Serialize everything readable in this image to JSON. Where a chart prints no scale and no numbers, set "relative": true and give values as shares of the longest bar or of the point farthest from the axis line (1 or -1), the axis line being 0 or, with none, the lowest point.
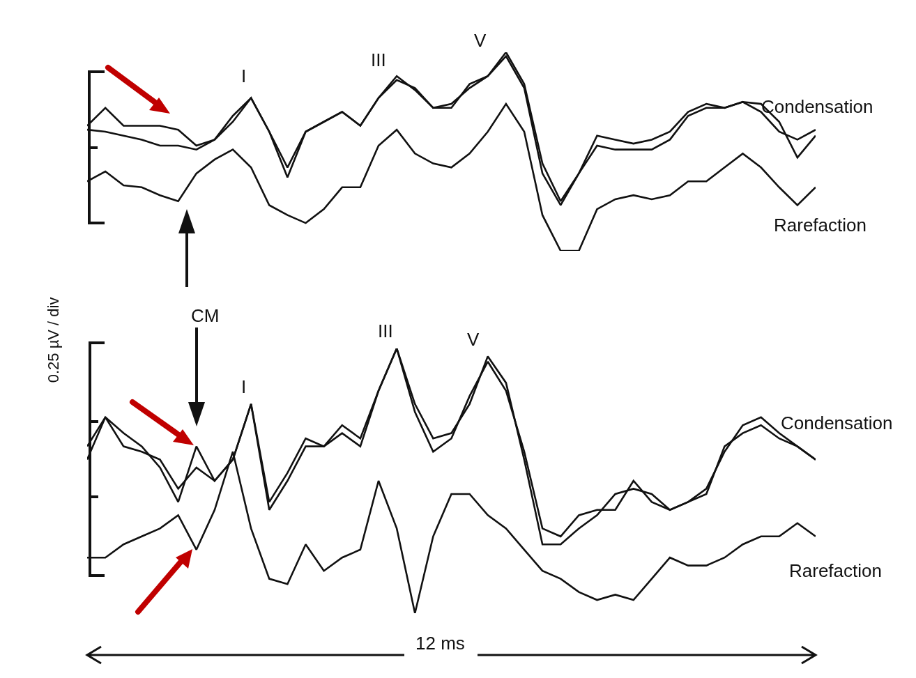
{
  "chart_data": [
    {
      "type": "line",
      "relative": true,
      "categories": [
        null,
        null,
        null,
        null,
        null,
        null,
        null,
        null,
        null,
        null,
        null,
        null,
        null,
        null,
        null,
        null,
        null,
        null,
        null,
        null,
        null,
        null,
        null,
        null,
        null,
        null,
        null,
        null,
        null,
        null,
        null,
        null,
        null,
        null,
        null,
        null,
        null,
        null,
        null,
        null,
        null
      ],
      "line_style": "solid",
      "marker": "none",
      "annotations": [
        "I",
        "III",
        "V"
      ],
      "series": [
        {
          "name": "Condensation",
          "color": "#111111",
          "values": [
            0.63,
            0.72,
            0.63,
            0.63,
            0.63,
            0.61,
            0.53,
            0.56,
            0.68,
            0.77,
            0.6,
            0.42,
            0.6,
            0.65,
            0.7,
            0.63,
            0.77,
            0.88,
            0.81,
            0.72,
            0.72,
            0.84,
            0.88,
            1,
            0.84,
            0.44,
            0.25,
            0.39,
            0.58,
            0.56,
            0.54,
            0.56,
            0.6,
            0.7,
            0.74,
            0.72,
            0.75,
            0.7,
            0.6,
            0.56,
            0.61
          ]
        },
        {
          "color": "#111111",
          "values": [
            0.61,
            0.6,
            0.58,
            0.56,
            0.53,
            0.53,
            0.51,
            0.56,
            0.65,
            0.77,
            0.6,
            0.37,
            0.6,
            0.65,
            0.7,
            0.63,
            0.77,
            0.86,
            0.82,
            0.72,
            0.74,
            0.82,
            0.88,
            0.98,
            0.82,
            0.39,
            0.23,
            0.39,
            0.53,
            0.51,
            0.51,
            0.51,
            0.56,
            0.68,
            0.72,
            0.72,
            0.75,
            0.74,
            0.65,
            0.47,
            0.58
          ]
        },
        {
          "name": "Rarefaction",
          "color": "#111111",
          "values": [
            0.35,
            0.4,
            0.33,
            0.32,
            0.28,
            0.25,
            0.39,
            0.46,
            0.51,
            0.42,
            0.23,
            0.18,
            0.14,
            0.21,
            0.32,
            0.32,
            0.53,
            0.61,
            0.49,
            0.44,
            0.42,
            0.49,
            0.6,
            0.74,
            0.6,
            0.18,
            0,
            0,
            0.21,
            0.26,
            0.28,
            0.26,
            0.28,
            0.35,
            0.35,
            0.42,
            0.49,
            0.42,
            0.32,
            0.23,
            0.32
          ]
        }
      ]
    },
    {
      "type": "line",
      "relative": true,
      "categories": [
        null,
        null,
        null,
        null,
        null,
        null,
        null,
        null,
        null,
        null,
        null,
        null,
        null,
        null,
        null,
        null,
        null,
        null,
        null,
        null,
        null,
        null,
        null,
        null,
        null,
        null,
        null,
        null,
        null,
        null,
        null,
        null,
        null,
        null,
        null,
        null,
        null,
        null,
        null,
        null,
        null
      ],
      "line_style": "solid",
      "marker": "none",
      "ylabel": "0.25 µV / div",
      "annotations": [
        "I",
        "III",
        "V",
        "CM",
        "12 ms"
      ],
      "series": [
        {
          "name": "Condensation",
          "color": "#111111",
          "values": [
            0.63,
            0.74,
            0.68,
            0.63,
            0.55,
            0.42,
            0.63,
            0.5,
            0.58,
            0.79,
            0.42,
            0.53,
            0.66,
            0.63,
            0.71,
            0.66,
            0.84,
            1,
            0.79,
            0.66,
            0.68,
            0.79,
            0.97,
            0.87,
            0.58,
            0.26,
            0.26,
            0.32,
            0.37,
            0.45,
            0.47,
            0.45,
            0.39,
            0.42,
            0.47,
            0.61,
            0.71,
            0.74,
            0.68,
            0.63,
            0.58
          ]
        },
        {
          "color": "#111111",
          "values": [
            0.58,
            0.74,
            0.63,
            0.61,
            0.58,
            0.47,
            0.55,
            0.5,
            0.58,
            0.79,
            0.39,
            0.5,
            0.63,
            0.63,
            0.68,
            0.63,
            0.84,
            1,
            0.76,
            0.61,
            0.66,
            0.82,
            0.95,
            0.84,
            0.61,
            0.32,
            0.29,
            0.37,
            0.39,
            0.39,
            0.5,
            0.42,
            0.39,
            0.42,
            0.45,
            0.63,
            0.68,
            0.71,
            0.66,
            0.63,
            0.58
          ]
        },
        {
          "name": "Rarefaction",
          "color": "#111111",
          "values": [
            0.21,
            0.21,
            0.26,
            0.29,
            0.32,
            0.37,
            0.24,
            0.39,
            0.61,
            0.32,
            0.13,
            0.11,
            0.26,
            0.16,
            0.21,
            0.24,
            0.5,
            0.32,
            0,
            0.29,
            0.45,
            0.45,
            0.37,
            0.32,
            0.24,
            0.16,
            0.13,
            0.08,
            0.05,
            0.07,
            0.05,
            0.13,
            0.21,
            0.18,
            0.18,
            0.21,
            0.26,
            0.29,
            0.29,
            0.34,
            0.29
          ]
        }
      ]
    }
  ]
}
